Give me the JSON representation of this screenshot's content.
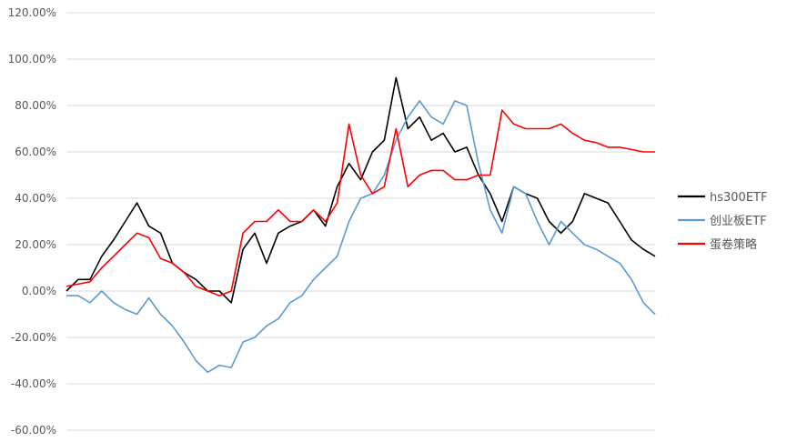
{
  "chart_data": {
    "type": "line",
    "title": "",
    "xlabel": "",
    "ylabel": "",
    "ylim": [
      -0.6,
      1.2
    ],
    "y_ticks": [
      {
        "value": 1.2,
        "label": "120.00%"
      },
      {
        "value": 1.0,
        "label": "100.00%"
      },
      {
        "value": 0.8,
        "label": "80.00%"
      },
      {
        "value": 0.6,
        "label": "60.00%"
      },
      {
        "value": 0.4,
        "label": "40.00%"
      },
      {
        "value": 0.2,
        "label": "20.00%"
      },
      {
        "value": 0.0,
        "label": "0.00%"
      },
      {
        "value": -0.2,
        "label": "-20.00%"
      },
      {
        "value": -0.4,
        "label": "-40.00%"
      },
      {
        "value": -0.6,
        "label": "-60.00%"
      }
    ],
    "grid": true,
    "legend_position": "right",
    "x_index_range": [
      0,
      100
    ],
    "series": [
      {
        "name": "hs300ETF",
        "color": "#000000",
        "x": [
          0,
          2,
          4,
          6,
          8,
          10,
          12,
          14,
          16,
          18,
          20,
          22,
          24,
          26,
          28,
          30,
          32,
          34,
          36,
          38,
          40,
          42,
          44,
          46,
          48,
          50,
          52,
          54,
          56,
          58,
          60,
          62,
          64,
          66,
          68,
          70,
          72,
          74,
          76,
          78,
          80,
          82,
          84,
          86,
          88,
          90,
          92,
          94,
          96,
          98,
          100
        ],
        "y": [
          0.0,
          0.05,
          0.05,
          0.15,
          0.22,
          0.3,
          0.38,
          0.28,
          0.25,
          0.12,
          0.08,
          0.05,
          0.0,
          0.0,
          -0.05,
          0.18,
          0.25,
          0.12,
          0.25,
          0.28,
          0.3,
          0.35,
          0.28,
          0.45,
          0.55,
          0.48,
          0.6,
          0.65,
          0.92,
          0.7,
          0.75,
          0.65,
          0.68,
          0.6,
          0.62,
          0.5,
          0.42,
          0.3,
          0.45,
          0.42,
          0.4,
          0.3,
          0.25,
          0.3,
          0.42,
          0.4,
          0.38,
          0.3,
          0.22,
          0.18,
          0.15
        ]
      },
      {
        "name": "创业板ETF",
        "color": "#5b9bd5",
        "x": [
          0,
          2,
          4,
          6,
          8,
          10,
          12,
          14,
          16,
          18,
          20,
          22,
          24,
          26,
          28,
          30,
          32,
          34,
          36,
          38,
          40,
          42,
          44,
          46,
          48,
          50,
          52,
          54,
          56,
          58,
          60,
          62,
          64,
          66,
          68,
          70,
          72,
          74,
          76,
          78,
          80,
          82,
          84,
          86,
          88,
          90,
          92,
          94,
          96,
          98,
          100
        ],
        "y": [
          -0.02,
          -0.02,
          -0.05,
          0.0,
          -0.05,
          -0.08,
          -0.1,
          -0.03,
          -0.1,
          -0.15,
          -0.22,
          -0.3,
          -0.35,
          -0.32,
          -0.33,
          -0.22,
          -0.2,
          -0.15,
          -0.12,
          -0.05,
          -0.02,
          0.05,
          0.1,
          0.15,
          0.3,
          0.4,
          0.42,
          0.5,
          0.65,
          0.75,
          0.82,
          0.75,
          0.72,
          0.82,
          0.8,
          0.55,
          0.35,
          0.25,
          0.45,
          0.42,
          0.3,
          0.2,
          0.3,
          0.25,
          0.2,
          0.18,
          0.15,
          0.12,
          0.05,
          -0.05,
          -0.1
        ]
      },
      {
        "name": "蛋卷策略",
        "color": "#ff0000",
        "x": [
          0,
          2,
          4,
          6,
          8,
          10,
          12,
          14,
          16,
          18,
          20,
          22,
          24,
          26,
          28,
          30,
          32,
          34,
          36,
          38,
          40,
          42,
          44,
          46,
          48,
          50,
          52,
          54,
          56,
          58,
          60,
          62,
          64,
          66,
          68,
          70,
          72,
          74,
          76,
          78,
          80,
          82,
          84,
          86,
          88,
          90,
          92,
          94,
          96,
          98,
          100
        ],
        "y": [
          0.02,
          0.03,
          0.04,
          0.1,
          0.15,
          0.2,
          0.25,
          0.23,
          0.14,
          0.12,
          0.08,
          0.02,
          0.0,
          -0.02,
          0.0,
          0.25,
          0.3,
          0.3,
          0.35,
          0.3,
          0.3,
          0.35,
          0.3,
          0.38,
          0.72,
          0.5,
          0.42,
          0.45,
          0.7,
          0.45,
          0.5,
          0.52,
          0.52,
          0.48,
          0.48,
          0.5,
          0.5,
          0.78,
          0.72,
          0.7,
          0.7,
          0.7,
          0.72,
          0.68,
          0.65,
          0.64,
          0.62,
          0.62,
          0.61,
          0.6,
          0.6
        ]
      }
    ]
  }
}
